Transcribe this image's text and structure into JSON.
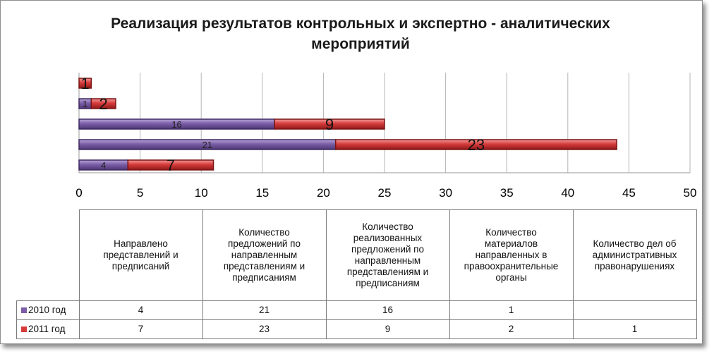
{
  "chart_data": {
    "type": "bar",
    "orientation": "horizontal",
    "stacked": true,
    "title": "Реализация результатов контрольных и экспертно - аналитических\nмероприятий",
    "categories": [
      "Направлено\nпредставлений и\nпредписаний",
      "Количество\nпредложений по\nнаправленным\nпредставлениям и\nпредписаниям",
      "Количество\nреализованных\nпредложений по\nнаправленным\nпредставлениям и\nпредписаниям",
      "Количество\nматериалов\nнаправленных в\nправоохранительные\nорганы",
      "Количество дел об\nадминистративных\nправонарушениях"
    ],
    "series": [
      {
        "name": "2010 год",
        "color": "#7b5ea7",
        "values": [
          4,
          21,
          16,
          1,
          null
        ]
      },
      {
        "name": "2011 год",
        "color": "#d63b3b",
        "values": [
          7,
          23,
          9,
          2,
          1
        ]
      }
    ],
    "xlim": [
      0,
      50
    ],
    "xticks": [
      "0",
      "5",
      "10",
      "15",
      "20",
      "25",
      "30",
      "35",
      "40",
      "45",
      "50"
    ],
    "grid": true,
    "data_table": true
  }
}
